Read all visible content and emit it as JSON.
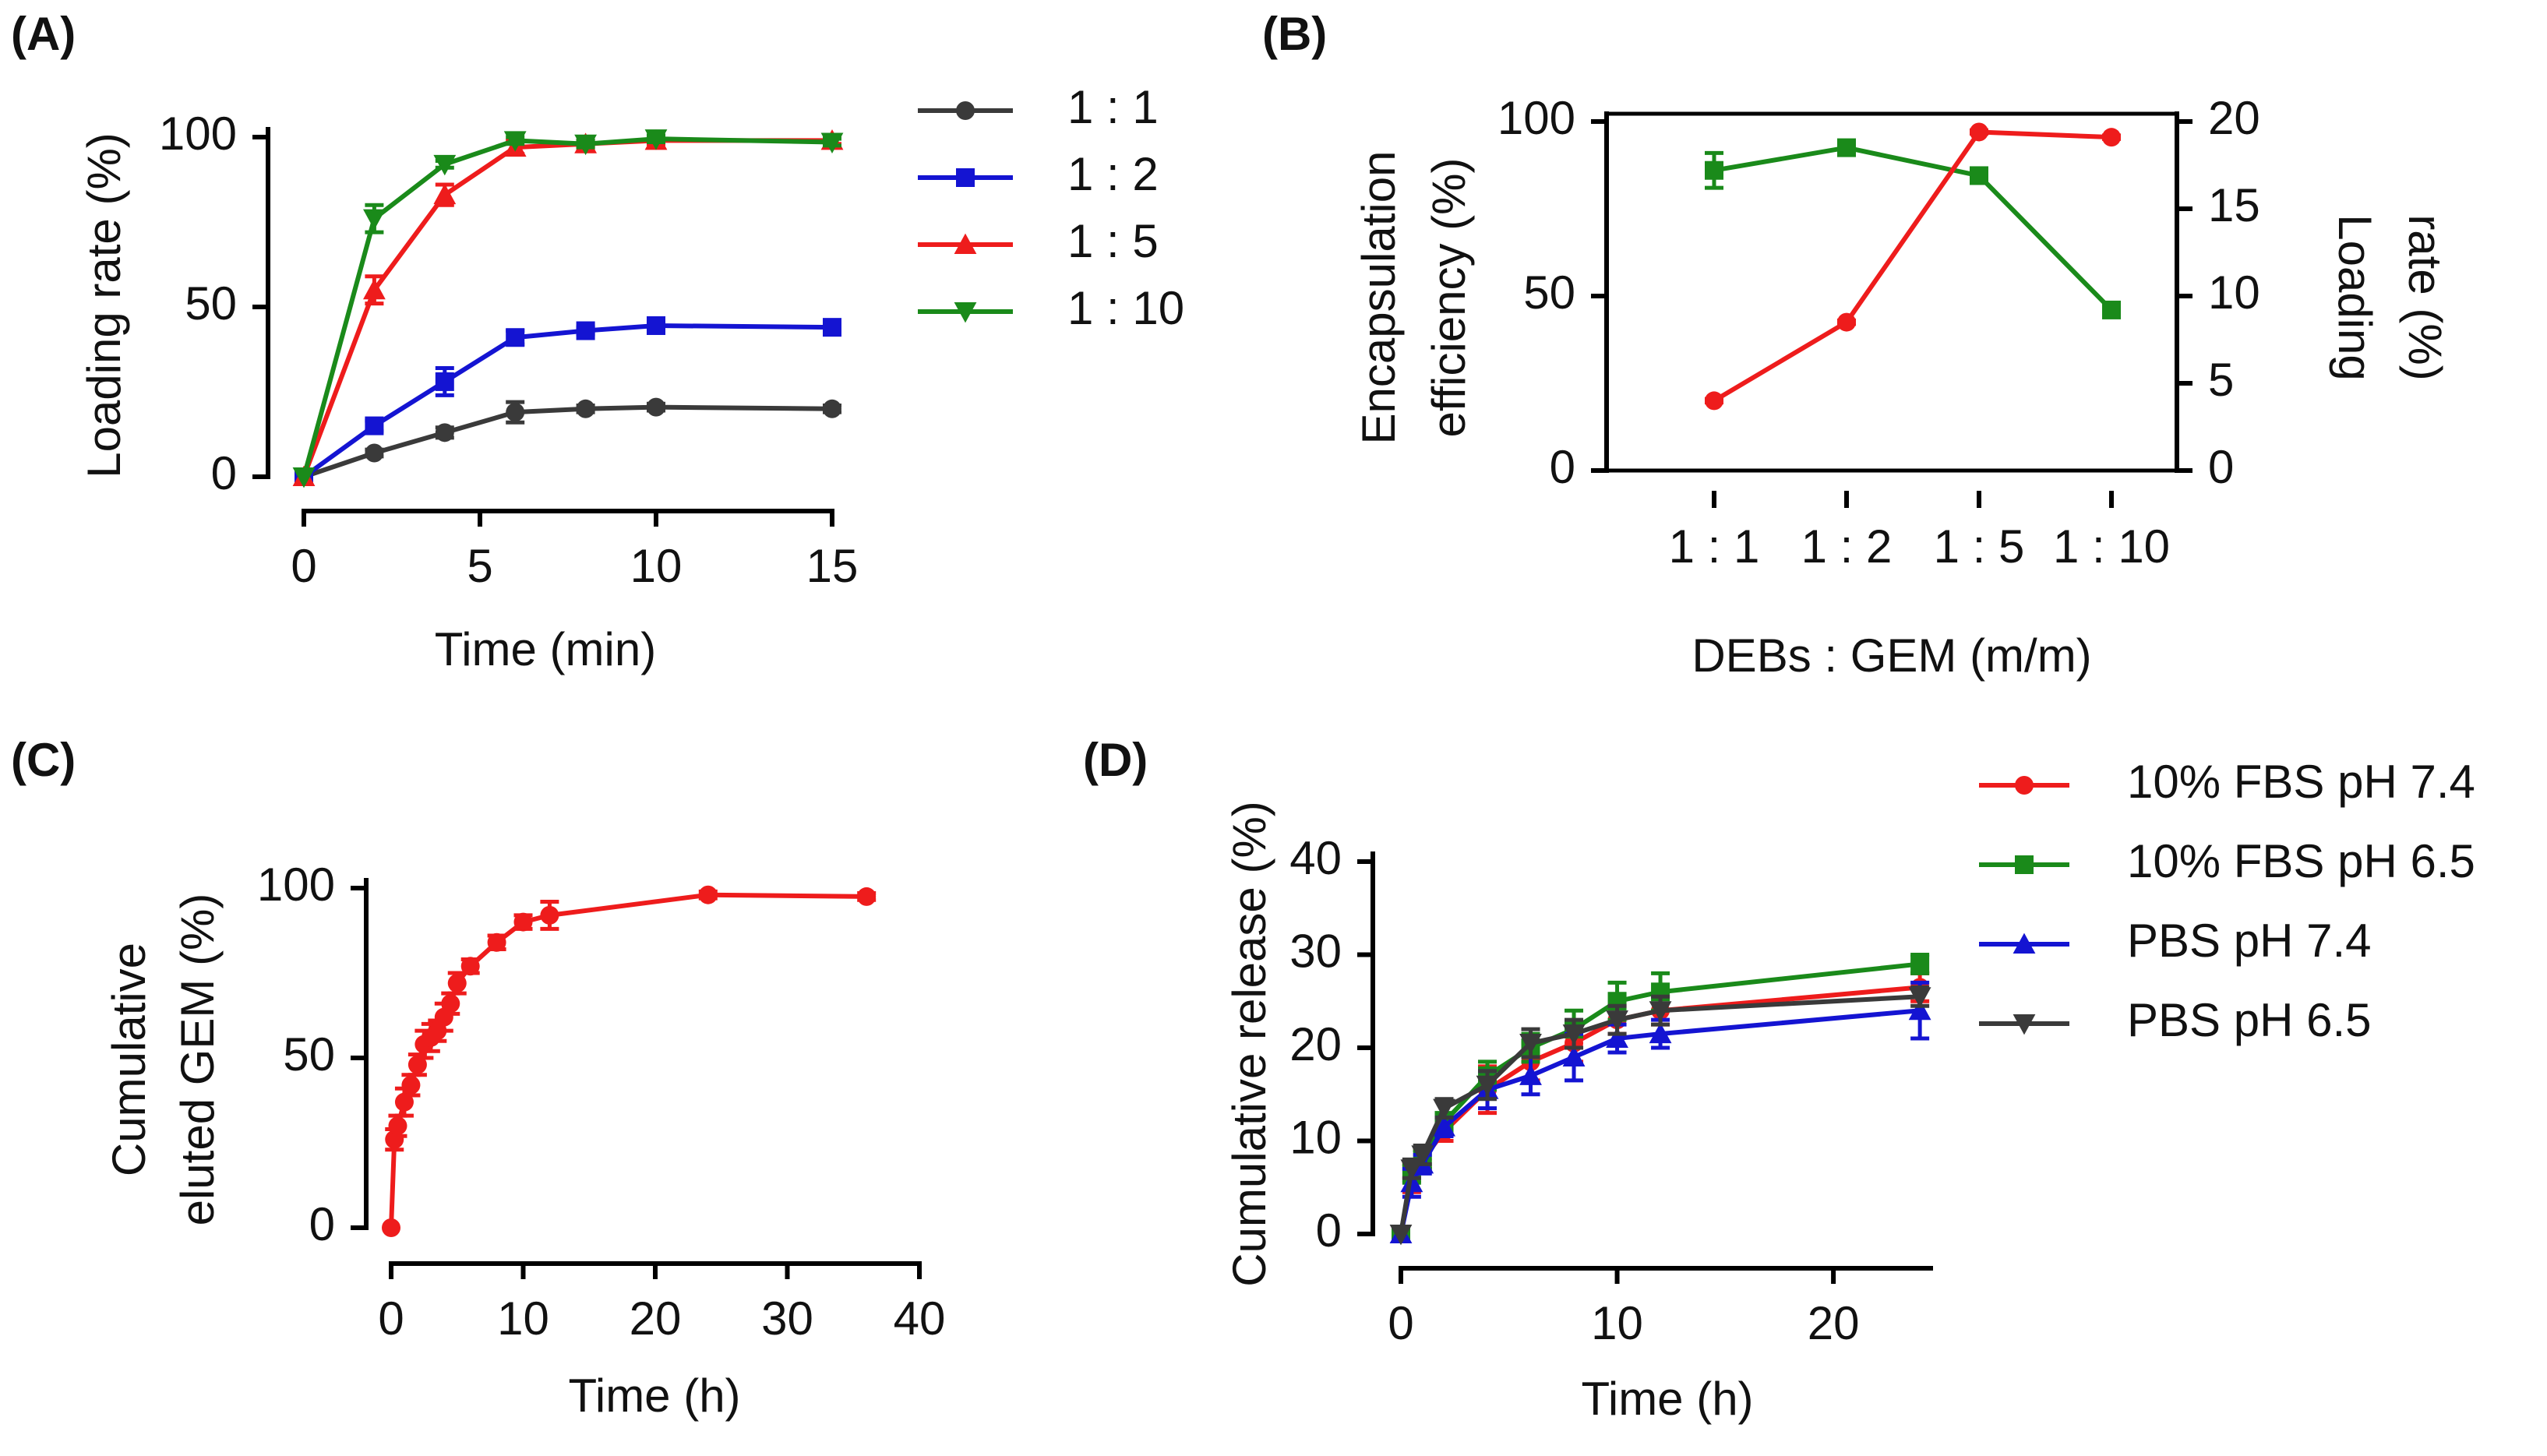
{
  "chart_data": [
    {
      "panel": "(A)",
      "type": "line",
      "xlabel": "Time (min)",
      "ylabel": "Loading rate (%)",
      "xlim": [
        0,
        15
      ],
      "ylim": [
        0,
        100
      ],
      "xticks": [
        0,
        5,
        10,
        15
      ],
      "yticks": [
        0,
        50,
        100
      ],
      "x": [
        0,
        2,
        4,
        6,
        8,
        10,
        15
      ],
      "series": [
        {
          "name": "1 : 1",
          "color": "#3a3a3a",
          "marker": "circle",
          "values": [
            0,
            7,
            13,
            19,
            20,
            20.5,
            20
          ],
          "errors": [
            0,
            1,
            1.5,
            3,
            1,
            1,
            1
          ]
        },
        {
          "name": "1 : 2",
          "color": "#1414d2",
          "marker": "square",
          "values": [
            0,
            15,
            28,
            41,
            43,
            44.5,
            44
          ],
          "errors": [
            0,
            1.5,
            4,
            2,
            1,
            1,
            1
          ]
        },
        {
          "name": "1 : 5",
          "color": "#ee1c1c",
          "marker": "triangle-up",
          "values": [
            0,
            55,
            83,
            97,
            98,
            99,
            99
          ],
          "errors": [
            0,
            4,
            3,
            2,
            1,
            1,
            1
          ]
        },
        {
          "name": "1 : 10",
          "color": "#1a8a1a",
          "marker": "triangle-down",
          "values": [
            0,
            76,
            92,
            99,
            98,
            99.5,
            98.5
          ],
          "errors": [
            0,
            4,
            1,
            1,
            1,
            1,
            1
          ]
        }
      ]
    },
    {
      "panel": "(B)",
      "type": "line",
      "xlabel": "DEBs : GEM (m/m)",
      "categories": [
        "1 : 1",
        "1 : 2",
        "1 : 5",
        "1 : 10"
      ],
      "left_ylabel_line1": "Encapsulation",
      "left_ylabel_line2": "efficiency (%)",
      "right_ylabel_line1": "Loading",
      "right_ylabel_line2": "rate (%)",
      "left_ylim": [
        0,
        100
      ],
      "left_yticks": [
        0,
        50,
        100
      ],
      "right_ylim": [
        0,
        20
      ],
      "right_yticks": [
        0,
        5,
        10,
        15,
        20
      ],
      "series": [
        {
          "name": "Encapsulation efficiency",
          "axis": "left",
          "color": "#1a8a1a",
          "marker": "square",
          "values": [
            86,
            92.5,
            84.5,
            46
          ],
          "errors": [
            5,
            1,
            1.5,
            1
          ]
        },
        {
          "name": "Loading rate",
          "axis": "right",
          "color": "#ee1c1c",
          "marker": "circle",
          "values": [
            4,
            8.5,
            19.4,
            19.1
          ],
          "errors": [
            0.1,
            0.1,
            0.1,
            0.1
          ]
        }
      ]
    },
    {
      "panel": "(C)",
      "type": "line",
      "xlabel": "Time (h)",
      "ylabel_line1": "Cumulative",
      "ylabel_line2": "eluted GEM (%)",
      "xlim": [
        0,
        40
      ],
      "ylim": [
        0,
        100
      ],
      "xticks": [
        0,
        10,
        20,
        30,
        40
      ],
      "yticks": [
        0,
        50,
        100
      ],
      "series": [
        {
          "name": "GEM",
          "color": "#ee1c1c",
          "marker": "circle",
          "x": [
            0,
            0.25,
            0.5,
            1,
            1.5,
            2,
            2.5,
            3,
            3.5,
            4,
            4.5,
            5,
            6,
            8,
            10,
            12,
            24,
            36
          ],
          "values": [
            0,
            26,
            30,
            37,
            42,
            48,
            54,
            56,
            58,
            62,
            66,
            72,
            77,
            84,
            90,
            92,
            98,
            97.5
          ],
          "errors": [
            0,
            3,
            3,
            4,
            3,
            3,
            4,
            4,
            3,
            4,
            3,
            3,
            2,
            2,
            2,
            4,
            1,
            1
          ]
        }
      ]
    },
    {
      "panel": "(D)",
      "type": "line",
      "xlabel": "Time (h)",
      "ylabel": "Cumulative release (%)",
      "xlim": [
        0,
        24.5
      ],
      "ylim": [
        0,
        40
      ],
      "xticks": [
        0,
        10,
        20
      ],
      "yticks": [
        0,
        10,
        20,
        30,
        40
      ],
      "x": [
        0,
        0.5,
        1,
        2,
        4,
        6,
        8,
        10,
        12,
        24
      ],
      "series": [
        {
          "name": "10% FBS pH 7.4",
          "color": "#ee1c1c",
          "marker": "circle",
          "values": [
            0,
            6,
            8,
            11,
            15.5,
            18.5,
            20.5,
            23,
            24,
            26.5
          ],
          "errors": [
            0,
            1.5,
            1,
            1,
            2.5,
            2,
            2,
            1.5,
            1.5,
            1.5
          ]
        },
        {
          "name": "10% FBS pH 6.5",
          "color": "#1a8a1a",
          "marker": "square",
          "values": [
            0,
            6.5,
            8,
            12,
            17,
            20,
            22,
            25,
            26,
            29
          ],
          "errors": [
            0,
            1,
            1,
            1,
            1.5,
            1.5,
            2,
            2,
            2,
            1
          ]
        },
        {
          "name": "PBS pH 7.4",
          "color": "#1414d2",
          "marker": "triangle-up",
          "values": [
            0,
            5.5,
            7.5,
            11.5,
            15.5,
            17,
            19,
            21,
            21.5,
            24
          ],
          "errors": [
            0,
            1.5,
            1,
            1,
            2,
            2,
            2.5,
            1.5,
            1.5,
            3
          ]
        },
        {
          "name": "PBS pH 6.5",
          "color": "#3a3a3a",
          "marker": "triangle-down",
          "values": [
            0,
            7,
            8.5,
            13.5,
            16,
            20.5,
            21.5,
            23,
            24,
            25.5
          ],
          "errors": [
            0,
            1,
            1,
            1,
            1.5,
            1.5,
            1.5,
            1.5,
            1.5,
            1
          ]
        }
      ]
    }
  ]
}
